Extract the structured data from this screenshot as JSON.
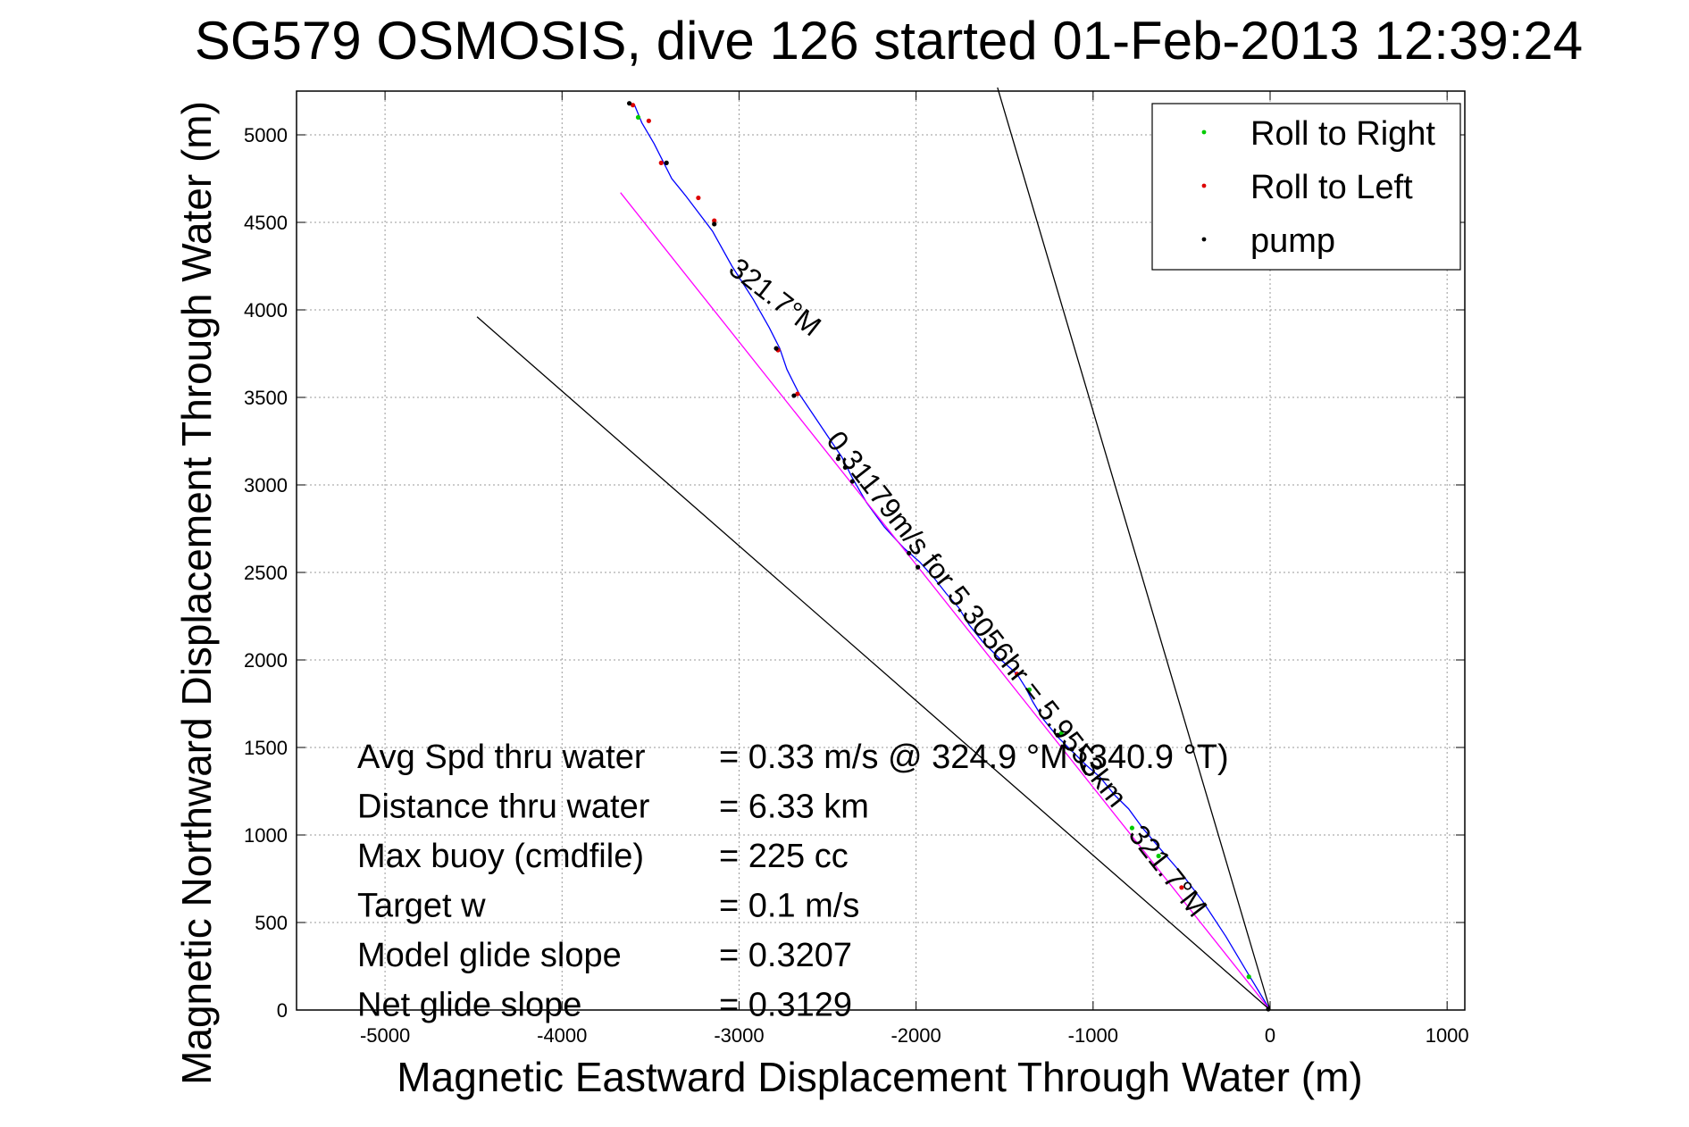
{
  "chart_data": {
    "type": "line",
    "title": "SG579 OSMOSIS, dive 126 started 01-Feb-2013 12:39:24",
    "xlabel": "Magnetic Eastward Displacement Through Water (m)",
    "ylabel": "Magnetic Northward Displacement Through Water (m)",
    "xlim": [
      -5500,
      1100
    ],
    "ylim": [
      0,
      5250
    ],
    "xticks": [
      -5000,
      -4000,
      -3000,
      -2000,
      -1000,
      0,
      1000
    ],
    "yticks": [
      0,
      500,
      1000,
      1500,
      2000,
      2500,
      3000,
      3500,
      4000,
      4500,
      5000
    ],
    "grid": true,
    "legend_position": "top-right",
    "legend": [
      {
        "label": "Roll to Right",
        "color": "#00cc00"
      },
      {
        "label": "Roll to Left",
        "color": "#dd0000"
      },
      {
        "label": "pump",
        "color": "#000000"
      }
    ],
    "series": [
      {
        "color": "#0000ff",
        "points": [
          [
            0,
            0
          ],
          [
            -120,
            200
          ],
          [
            -250,
            420
          ],
          [
            -380,
            620
          ],
          [
            -500,
            780
          ],
          [
            -620,
            920
          ],
          [
            -720,
            1040
          ],
          [
            -800,
            1150
          ],
          [
            -880,
            1230
          ],
          [
            -960,
            1330
          ],
          [
            -1040,
            1400
          ],
          [
            -1120,
            1480
          ],
          [
            -1200,
            1560
          ],
          [
            -1280,
            1660
          ],
          [
            -1340,
            1760
          ],
          [
            -1380,
            1840
          ],
          [
            -1430,
            1920
          ],
          [
            -1520,
            2000
          ],
          [
            -1620,
            2100
          ],
          [
            -1700,
            2200
          ],
          [
            -1760,
            2300
          ],
          [
            -1830,
            2380
          ],
          [
            -1900,
            2470
          ],
          [
            -1980,
            2560
          ],
          [
            -2070,
            2640
          ],
          [
            -2180,
            2760
          ],
          [
            -2280,
            2900
          ],
          [
            -2360,
            3040
          ],
          [
            -2420,
            3160
          ],
          [
            -2500,
            3280
          ],
          [
            -2580,
            3400
          ],
          [
            -2660,
            3520
          ],
          [
            -2730,
            3660
          ],
          [
            -2770,
            3780
          ],
          [
            -2830,
            3900
          ],
          [
            -2920,
            4060
          ],
          [
            -3040,
            4250
          ],
          [
            -3150,
            4450
          ],
          [
            -3300,
            4650
          ],
          [
            -3380,
            4750
          ],
          [
            -3480,
            4950
          ],
          [
            -3550,
            5070
          ],
          [
            -3590,
            5170
          ]
        ]
      },
      {
        "color": "#ff00ff",
        "points": [
          [
            0,
            0
          ],
          [
            -3670,
            4670
          ]
        ]
      },
      {
        "color": "#000000",
        "points": [
          [
            0,
            0
          ],
          [
            -1540,
            5270
          ]
        ]
      },
      {
        "color": "#000000",
        "points": [
          [
            0,
            0
          ],
          [
            -4480,
            3960
          ]
        ]
      }
    ],
    "markers": {
      "roll_right": [
        [
          -1360,
          1830
        ],
        [
          -1180,
          1580
        ],
        [
          -780,
          1040
        ],
        [
          -630,
          880
        ],
        [
          -120,
          190
        ],
        [
          -3570,
          5100
        ]
      ],
      "roll_left": [
        [
          -1430,
          1920
        ],
        [
          -2780,
          3770
        ],
        [
          -2670,
          3520
        ],
        [
          -3140,
          4510
        ],
        [
          -3230,
          4640
        ],
        [
          -3440,
          4840
        ],
        [
          -3600,
          5170
        ],
        [
          -3510,
          5080
        ],
        [
          -500,
          700
        ]
      ],
      "pump": [
        [
          -2440,
          3150
        ],
        [
          -2400,
          3100
        ],
        [
          -2360,
          3020
        ],
        [
          -2040,
          2610
        ],
        [
          -1990,
          2530
        ],
        [
          -2790,
          3780
        ],
        [
          -3140,
          4490
        ],
        [
          -3410,
          4840
        ],
        [
          -3620,
          5180
        ],
        [
          -2690,
          3510
        ],
        [
          -1200,
          1570
        ],
        [
          -1120,
          1490
        ],
        [
          -10,
          5
        ]
      ]
    },
    "annotations": [
      {
        "label": "Avg Spd thru water",
        "value": "=  0.33 m/s @ 324.9 °M (340.9 °T)"
      },
      {
        "label": "Distance thru water",
        "value": "=  6.33 km"
      },
      {
        "label": "Max buoy (cmdfile)",
        "value": "= 225 cc"
      },
      {
        "label": "Target w",
        "value": "= 0.1 m/s"
      },
      {
        "label": "Model glide slope",
        "value": "= 0.3207"
      },
      {
        "label": "Net glide slope",
        "value": "= 0.3129"
      }
    ],
    "path_labels": [
      {
        "text": "321.7°M",
        "x": -2830,
        "y": 4030,
        "angle": -142
      },
      {
        "text": "0.31179m/s for 5.3056hr = 5.9553km",
        "x": -1700,
        "y": 2200,
        "angle": -128
      },
      {
        "text": "321.7°M",
        "x": -620,
        "y": 760,
        "angle": -128
      }
    ]
  }
}
